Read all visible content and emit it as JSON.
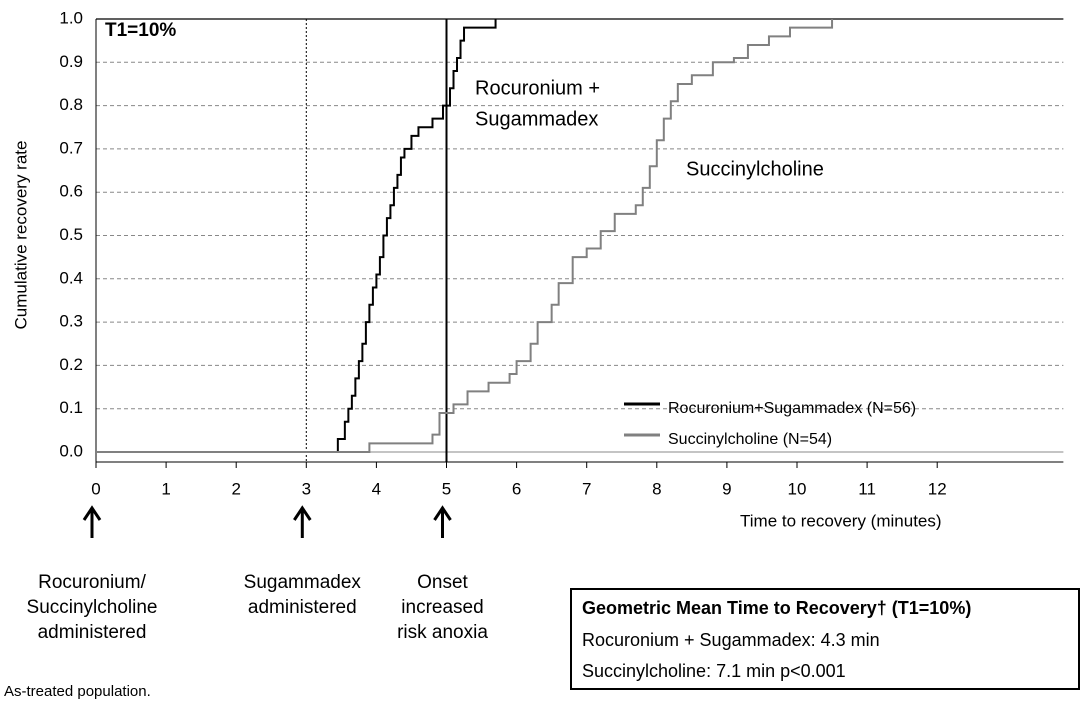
{
  "chart_data": {
    "type": "line",
    "step": true,
    "y_label": "Cumulative recovery rate",
    "x_label": "Time to recovery (minutes)",
    "xlim": [
      0,
      13.8
    ],
    "ylim": [
      0,
      1
    ],
    "xticks": [
      0,
      1,
      2,
      3,
      4,
      5,
      6,
      7,
      8,
      9,
      10,
      11,
      12
    ],
    "yticks": [
      {
        "value": 0,
        "label": "0.0"
      },
      0.1,
      0.2,
      0.3,
      0.4,
      0.5,
      0.6,
      0.7,
      0.8,
      0.9,
      {
        "value": 1,
        "label": "1.0"
      }
    ],
    "grid": true,
    "legend": "lower right",
    "series": [
      {
        "name": "Rocuronium+Sugammadex (N=56)",
        "color": "#000000",
        "x": [
          0,
          3.45,
          3.55,
          3.6,
          3.65,
          3.7,
          3.75,
          3.8,
          3.85,
          3.9,
          3.95,
          4.0,
          4.05,
          4.1,
          4.15,
          4.2,
          4.25,
          4.3,
          4.35,
          4.4,
          4.5,
          4.6,
          4.8,
          4.95,
          5.05,
          5.1,
          5.15,
          5.2,
          5.25,
          5.7
        ],
        "values": [
          0,
          0.03,
          0.07,
          0.1,
          0.13,
          0.17,
          0.21,
          0.25,
          0.3,
          0.34,
          0.38,
          0.41,
          0.45,
          0.5,
          0.54,
          0.57,
          0.61,
          0.64,
          0.68,
          0.7,
          0.73,
          0.75,
          0.77,
          0.8,
          0.84,
          0.88,
          0.91,
          0.95,
          0.98,
          1.0
        ]
      },
      {
        "name": "Succinylcholine (N=54)",
        "color": "#808080",
        "x": [
          0,
          3.9,
          4.8,
          4.9,
          5.1,
          5.3,
          5.6,
          5.9,
          6.0,
          6.2,
          6.3,
          6.5,
          6.6,
          6.8,
          7.0,
          7.2,
          7.4,
          7.7,
          7.8,
          7.9,
          8.0,
          8.1,
          8.2,
          8.3,
          8.5,
          8.8,
          9.1,
          9.3,
          9.6,
          9.9,
          10.5
        ],
        "values": [
          0,
          0.02,
          0.04,
          0.09,
          0.11,
          0.14,
          0.16,
          0.18,
          0.21,
          0.25,
          0.3,
          0.34,
          0.39,
          0.45,
          0.47,
          0.51,
          0.55,
          0.57,
          0.61,
          0.66,
          0.72,
          0.77,
          0.81,
          0.85,
          0.87,
          0.9,
          0.91,
          0.94,
          0.96,
          0.98,
          1.0
        ]
      }
    ],
    "annotations": {
      "panel": "T1=10%",
      "series_labels": [
        [
          "Rocuronium +",
          "Sugammadex"
        ],
        [
          "Succinylcholine"
        ]
      ],
      "vlines": [
        {
          "x": 3,
          "style": "dotted"
        },
        {
          "x": 5,
          "style": "solid"
        }
      ],
      "markers": [
        {
          "x": 0,
          "label": [
            "Rocuronium/",
            "Succinylcholine",
            "administered"
          ]
        },
        {
          "x": 3,
          "label": [
            "Sugammadex",
            "administered"
          ]
        },
        {
          "x": 5,
          "label": [
            "Onset",
            "increased",
            "risk anoxia"
          ]
        }
      ],
      "box": {
        "title": "Geometric Mean Time to Recovery† (T1=10%)",
        "lines": [
          "Rocuronium + Sugammadex: 4.3 min",
          "Succinylcholine: 7.1 min p<0.001"
        ]
      },
      "footnote": "As-treated population."
    }
  }
}
